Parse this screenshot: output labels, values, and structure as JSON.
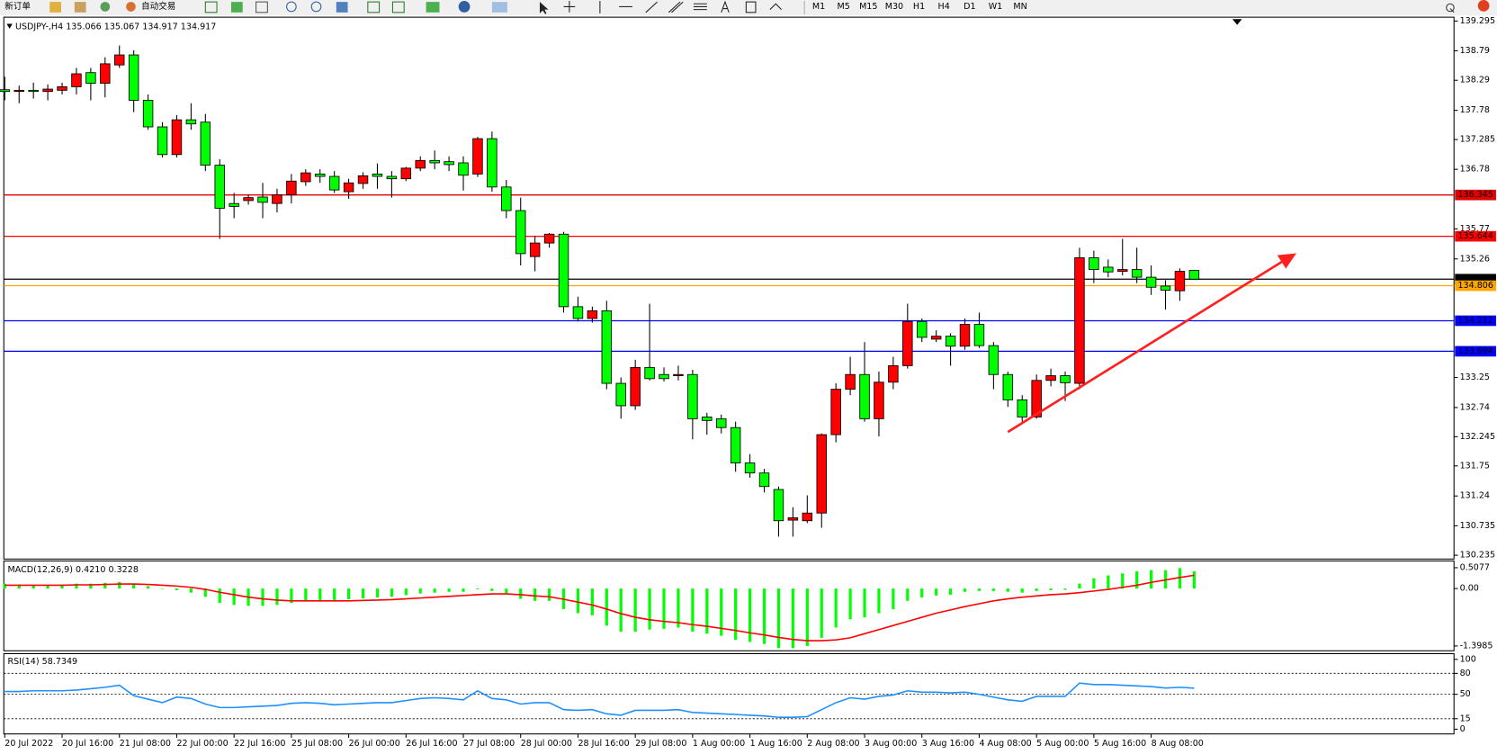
{
  "toolbar": {
    "new_order": "新订单",
    "auto_trading": "自动交易",
    "timeframes": [
      "M1",
      "M5",
      "M15",
      "M30",
      "H1",
      "H4",
      "D1",
      "W1",
      "MN"
    ]
  },
  "chart_data": [
    {
      "type": "candlestick",
      "title": "USDJPY-,H4",
      "x": [
        "20 Jul 2022",
        null,
        null,
        null,
        "20 Jul 16:00",
        null,
        null,
        null,
        "21 Jul 08:00",
        null,
        null,
        null,
        "22 Jul 00:00",
        null,
        null,
        null,
        "22 Jul 16:00",
        null,
        null,
        null,
        "25 Jul 08:00",
        null,
        null,
        null,
        "26 Jul 00:00",
        null,
        null,
        null,
        "26 Jul 16:00",
        null,
        null,
        null,
        "27 Jul 08:00",
        null,
        null,
        null,
        "28 Jul 00:00",
        null,
        null,
        null,
        "28 Jul 16:00",
        null,
        null,
        null,
        "29 Jul 08:00",
        null,
        null,
        null,
        "1 Aug 00:00",
        null,
        null,
        null,
        "1 Aug 16:00",
        null,
        null,
        null,
        "2 Aug 08:00",
        null,
        null,
        null,
        "3 Aug 00:00",
        null,
        null,
        null,
        "3 Aug 16:00",
        null,
        null,
        null,
        "4 Aug 08:00",
        null,
        null,
        null,
        "5 Aug 00:00",
        null,
        null,
        null,
        "5 Aug 16:00",
        null,
        null,
        null,
        "8 Aug 08:00",
        null,
        null,
        null
      ],
      "open": [
        138.13,
        138.1,
        138.12,
        138.1,
        138.12,
        138.18,
        138.42,
        138.24,
        138.55,
        138.72,
        137.95,
        137.5,
        137.03,
        137.62,
        137.58,
        136.85,
        136.2,
        136.25,
        136.31,
        136.2,
        136.35,
        136.57,
        136.7,
        136.66,
        136.4,
        136.54,
        136.7,
        136.66,
        136.62,
        136.8,
        136.93,
        136.91,
        136.89,
        136.7,
        137.3,
        136.48,
        136.08,
        135.3,
        135.53,
        135.68,
        134.45,
        134.25,
        134.38,
        133.15,
        132.77,
        133.42,
        133.3,
        133.28,
        133.3,
        132.58,
        132.55,
        132.4,
        131.8,
        131.63,
        131.35,
        130.83,
        130.82,
        130.95,
        132.28,
        133.05,
        133.3,
        132.55,
        133.17,
        133.45,
        134.2,
        133.9,
        133.95,
        133.78,
        134.15,
        133.79,
        133.3,
        132.87,
        132.58,
        133.2,
        133.28,
        133.15,
        135.28,
        135.12,
        135.05,
        135.08,
        134.95,
        134.8,
        134.72,
        135.066
      ],
      "high": [
        138.35,
        138.2,
        138.25,
        138.22,
        138.25,
        138.5,
        138.5,
        138.68,
        138.88,
        138.8,
        138.05,
        137.58,
        137.7,
        137.9,
        137.72,
        136.95,
        136.38,
        136.35,
        136.55,
        136.45,
        136.7,
        136.78,
        136.78,
        136.75,
        136.62,
        136.73,
        136.88,
        136.75,
        136.82,
        137.0,
        137.1,
        137.0,
        137.0,
        137.33,
        137.42,
        136.6,
        136.3,
        135.65,
        135.7,
        135.72,
        134.62,
        134.45,
        134.55,
        133.25,
        133.55,
        134.5,
        133.42,
        133.45,
        133.38,
        132.65,
        132.62,
        132.5,
        131.95,
        131.7,
        131.4,
        131.05,
        131.25,
        132.3,
        133.15,
        133.6,
        133.85,
        133.35,
        133.6,
        134.5,
        134.25,
        134.05,
        134.0,
        134.25,
        134.35,
        133.85,
        133.35,
        132.95,
        133.3,
        133.4,
        133.35,
        135.45,
        135.4,
        135.25,
        135.6,
        135.45,
        135.15,
        134.9,
        135.1,
        135.067
      ],
      "low": [
        137.95,
        137.9,
        137.98,
        137.95,
        138.05,
        138.05,
        137.95,
        138.0,
        138.5,
        137.75,
        137.45,
        136.98,
        136.98,
        137.45,
        136.75,
        135.6,
        135.95,
        136.18,
        135.95,
        136.05,
        136.2,
        136.5,
        136.55,
        136.38,
        136.28,
        136.45,
        136.45,
        136.3,
        136.58,
        136.75,
        136.78,
        136.75,
        136.42,
        136.65,
        136.4,
        135.95,
        135.15,
        135.05,
        135.45,
        134.35,
        134.2,
        134.18,
        133.05,
        132.55,
        132.7,
        133.2,
        133.18,
        133.2,
        132.2,
        132.28,
        132.3,
        131.65,
        131.55,
        131.3,
        130.55,
        130.55,
        130.78,
        130.7,
        132.15,
        132.95,
        132.5,
        132.25,
        133.05,
        133.4,
        133.85,
        133.85,
        133.45,
        133.72,
        133.75,
        133.05,
        132.75,
        132.5,
        132.55,
        133.1,
        132.85,
        133.05,
        134.85,
        134.95,
        134.98,
        134.85,
        134.65,
        134.4,
        134.55,
        134.917
      ],
      "close": [
        138.1,
        138.12,
        138.1,
        138.14,
        138.18,
        138.4,
        138.24,
        138.57,
        138.72,
        137.95,
        137.5,
        137.03,
        137.62,
        137.55,
        136.85,
        136.12,
        136.15,
        136.3,
        136.22,
        136.35,
        136.58,
        136.72,
        136.66,
        136.43,
        136.55,
        136.67,
        136.66,
        136.62,
        136.8,
        136.93,
        136.89,
        136.86,
        136.68,
        137.3,
        136.48,
        136.08,
        135.35,
        135.53,
        135.68,
        134.45,
        134.25,
        134.38,
        133.15,
        132.77,
        133.42,
        133.23,
        133.23,
        133.3,
        132.55,
        132.52,
        132.4,
        131.8,
        131.63,
        131.4,
        130.82,
        130.87,
        130.95,
        132.28,
        133.05,
        133.3,
        132.55,
        133.17,
        133.45,
        134.2,
        133.93,
        133.95,
        133.78,
        134.15,
        133.79,
        133.3,
        132.87,
        132.58,
        133.2,
        133.28,
        133.16,
        135.28,
        135.08,
        135.04,
        135.08,
        134.95,
        134.78,
        134.73,
        135.05,
        134.917
      ],
      "up_color": "#ff0000",
      "down_color": "#00ff00",
      "wick_color": "#000000",
      "ylim": [
        130.235,
        139.295
      ],
      "yticks": [
        139.295,
        138.79,
        138.29,
        137.78,
        137.285,
        136.78,
        135.77,
        135.26,
        133.25,
        132.74,
        132.245,
        131.75,
        131.24,
        130.735,
        130.235
      ],
      "levels": [
        {
          "value": 136.345,
          "color": "#e00000"
        },
        {
          "value": 135.644,
          "color": "#ff0000"
        },
        {
          "value": 134.917,
          "color": "#000000"
        },
        {
          "value": 134.806,
          "color": "#ffa500"
        },
        {
          "value": 134.212,
          "color": "#0000ff"
        },
        {
          "value": 133.694,
          "color": "#0000ff"
        }
      ]
    },
    {
      "type": "macd",
      "title": "MACD(12,26,9)",
      "header_values": [
        {
          "value": 0.421,
          "label": "0.4210"
        },
        0.3228
      ],
      "histogram": [
        0.12,
        0.1,
        0.08,
        0.08,
        0.1,
        0.12,
        0.12,
        0.14,
        0.16,
        0.12,
        0.06,
        0.0,
        -0.04,
        -0.1,
        -0.2,
        -0.35,
        -0.4,
        -0.42,
        -0.42,
        -0.4,
        -0.35,
        -0.3,
        -0.28,
        -0.28,
        -0.26,
        -0.24,
        -0.22,
        -0.2,
        -0.16,
        -0.12,
        -0.1,
        -0.08,
        -0.08,
        -0.02,
        -0.06,
        -0.12,
        -0.25,
        -0.3,
        -0.3,
        -0.5,
        -0.6,
        -0.65,
        -0.9,
        -1.05,
        -1.05,
        -1.0,
        -0.98,
        -0.95,
        -1.05,
        -1.1,
        -1.15,
        -1.25,
        -1.3,
        -1.35,
        -1.45,
        -1.45,
        -1.4,
        -1.2,
        -0.95,
        -0.75,
        -0.7,
        -0.6,
        -0.5,
        -0.3,
        -0.22,
        -0.17,
        -0.15,
        -0.08,
        -0.06,
        -0.06,
        -0.08,
        -0.1,
        -0.06,
        -0.04,
        -0.03,
        0.12,
        0.25,
        0.32,
        0.37,
        0.42,
        0.45,
        0.45,
        0.5,
        0.421
      ],
      "signal": [
        0.08,
        0.08,
        0.08,
        0.08,
        0.08,
        0.09,
        0.09,
        0.1,
        0.11,
        0.11,
        0.1,
        0.08,
        0.06,
        0.03,
        -0.02,
        -0.09,
        -0.15,
        -0.21,
        -0.25,
        -0.28,
        -0.3,
        -0.3,
        -0.3,
        -0.3,
        -0.3,
        -0.29,
        -0.28,
        -0.27,
        -0.25,
        -0.23,
        -0.21,
        -0.19,
        -0.17,
        -0.15,
        -0.13,
        -0.13,
        -0.15,
        -0.18,
        -0.2,
        -0.26,
        -0.33,
        -0.4,
        -0.5,
        -0.61,
        -0.7,
        -0.76,
        -0.8,
        -0.83,
        -0.88,
        -0.92,
        -0.97,
        -1.02,
        -1.08,
        -1.13,
        -1.19,
        -1.24,
        -1.27,
        -1.27,
        -1.25,
        -1.2,
        -1.1,
        -1.0,
        -0.9,
        -0.8,
        -0.7,
        -0.6,
        -0.52,
        -0.44,
        -0.37,
        -0.3,
        -0.25,
        -0.21,
        -0.18,
        -0.15,
        -0.13,
        -0.1,
        -0.06,
        -0.02,
        0.03,
        0.08,
        0.15,
        0.21,
        0.27,
        0.3228
      ],
      "histogram_color": "#00ff00",
      "signal_color": "#ff0000",
      "ylim": [
        -1.516,
        0.672
      ],
      "yticks": [
        0.5077,
        {
          "value": 0,
          "label": "0.00"
        },
        -1.3985
      ]
    },
    {
      "type": "rsi",
      "title": "RSI(14)",
      "values": [
        54,
        54,
        55,
        55,
        55,
        56,
        58,
        60,
        63,
        48,
        43,
        38,
        46,
        44,
        36,
        31,
        31,
        32,
        33,
        34,
        37,
        38,
        37,
        35,
        36,
        37,
        38,
        38,
        41,
        44,
        45,
        44,
        42,
        55,
        44,
        42,
        36,
        38,
        38,
        28,
        27,
        28,
        22,
        20,
        27,
        27,
        27,
        28,
        24,
        23,
        22,
        21,
        20,
        19,
        17,
        17,
        18,
        28,
        38,
        45,
        43,
        47,
        49,
        55,
        53,
        53,
        52,
        53,
        50,
        46,
        42,
        40,
        47,
        47,
        47,
        66,
        64,
        64,
        63,
        62,
        61,
        59,
        60,
        58.7349
      ],
      "color": "#1e90ff",
      "ylim": [
        -6.8,
        108.2
      ],
      "yticks": [
        100,
        80,
        50,
        15,
        0
      ],
      "levels": [
        80,
        50,
        15
      ]
    }
  ]
}
